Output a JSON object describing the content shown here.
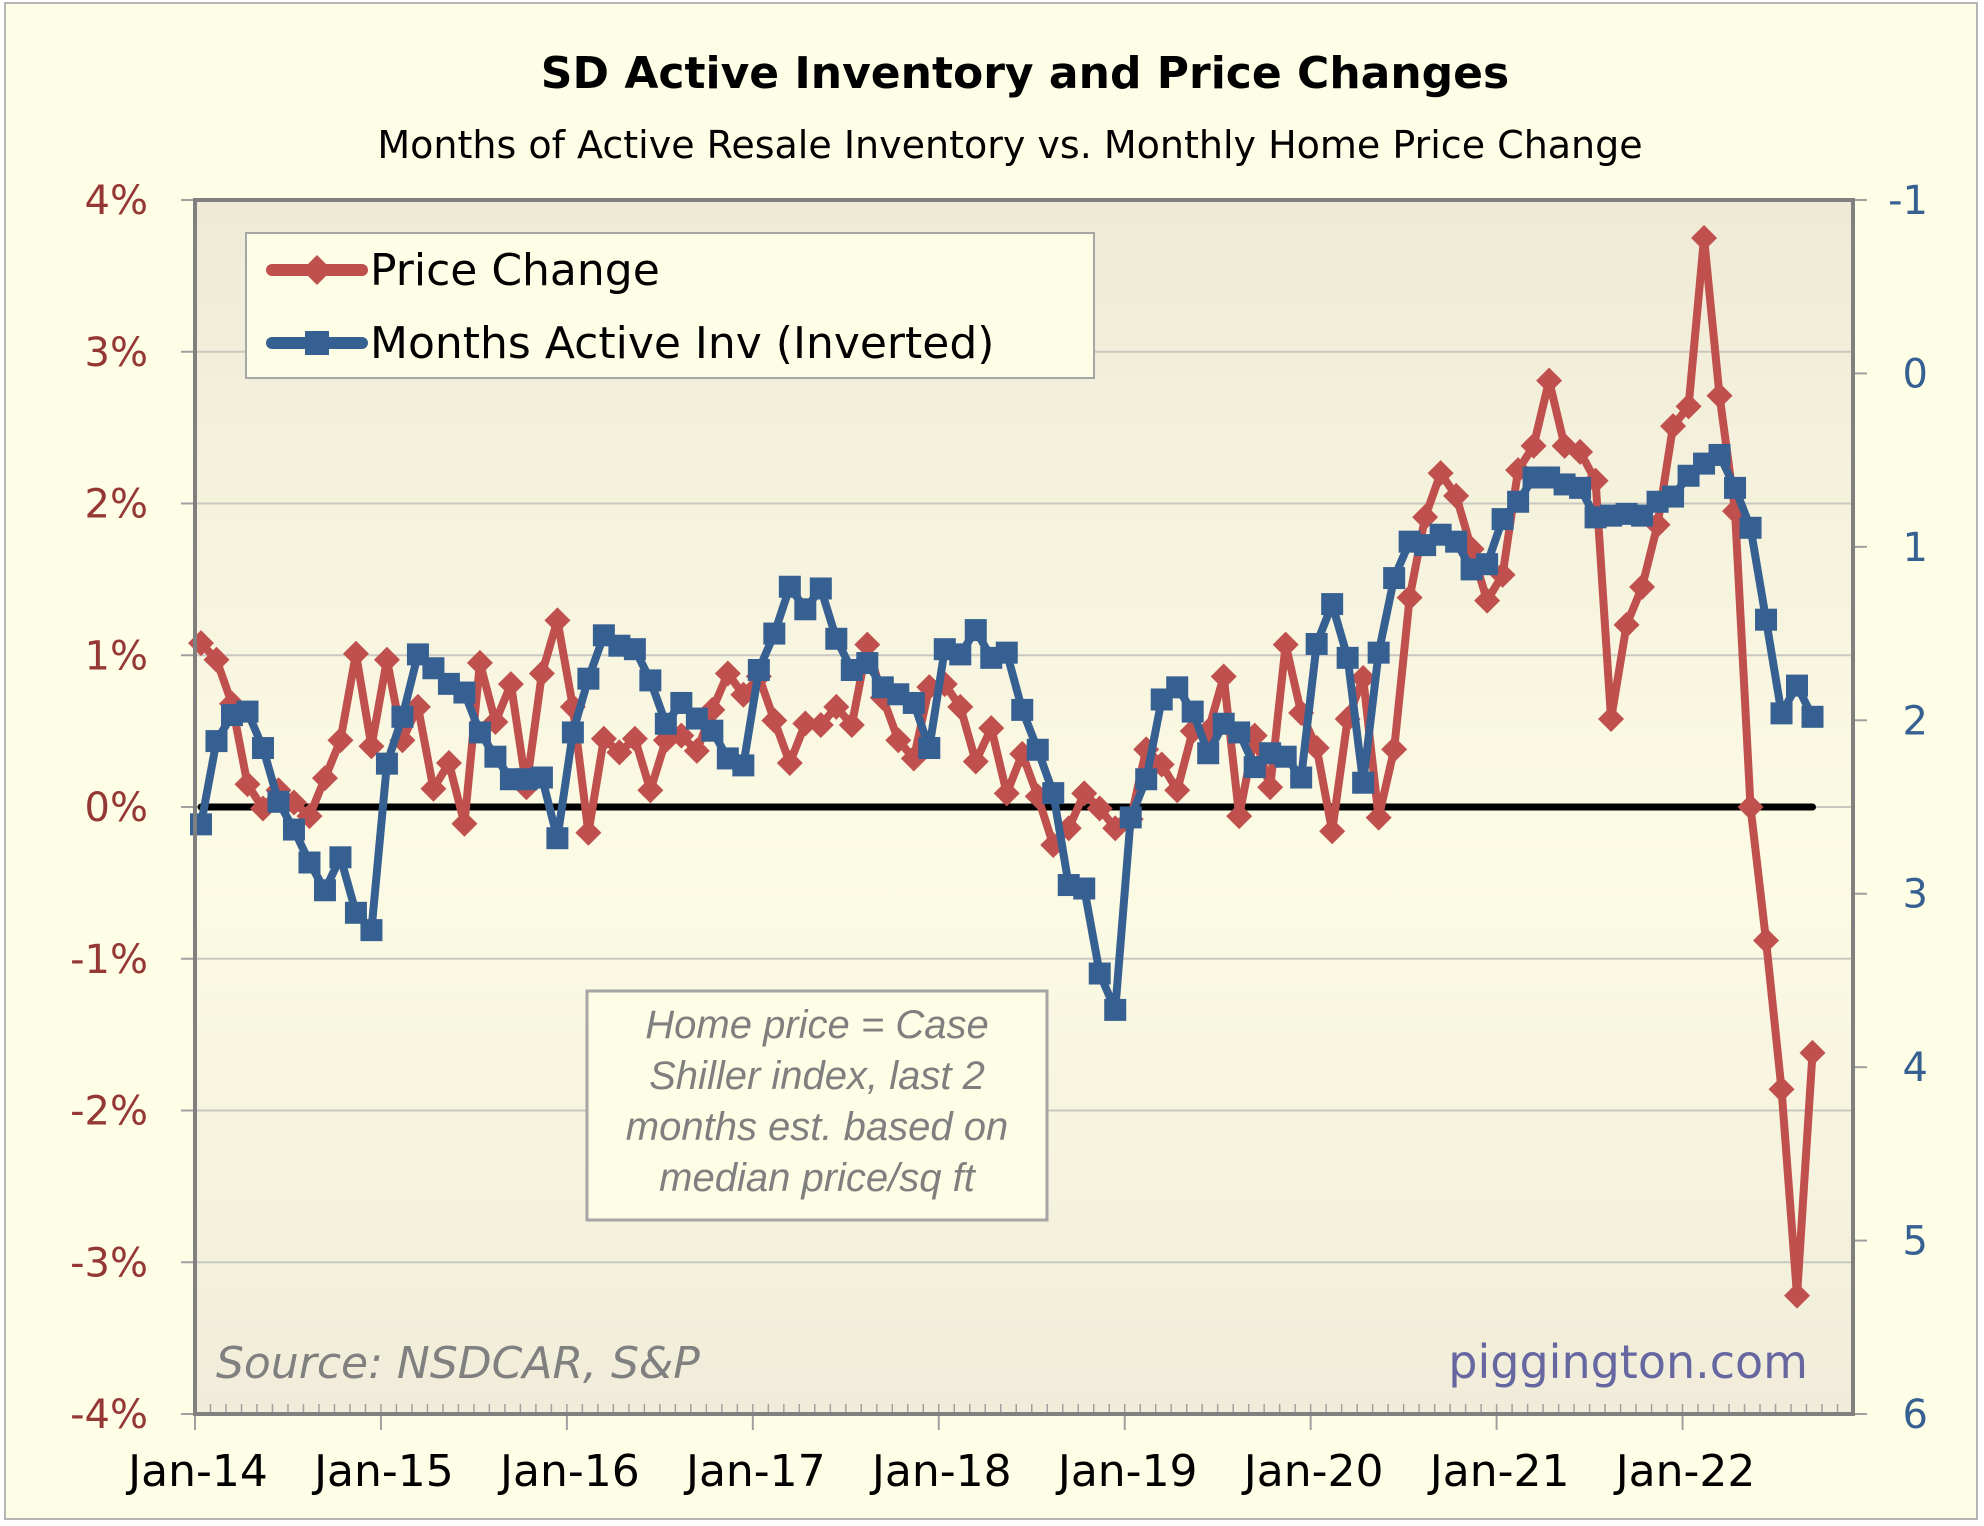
{
  "chart_data": {
    "type": "line",
    "title": "SD Active Inventory and Price Changes",
    "subtitle": "Months of Active Resale Inventory vs. Monthly Home Price Change",
    "xlabel": "",
    "ylabel_left": "",
    "ylabel_right": "",
    "x_start": "Jan-14",
    "x_tick_labels": [
      "Jan-14",
      "Jan-15",
      "Jan-16",
      "Jan-17",
      "Jan-18",
      "Jan-19",
      "Jan-20",
      "Jan-21",
      "Jan-22"
    ],
    "x_months_total": 107,
    "y_left": {
      "min": -4,
      "max": 4,
      "step": 1,
      "tick_labels": [
        "4%",
        "3%",
        "2%",
        "1%",
        "0%",
        "-1%",
        "-2%",
        "-3%",
        "-4%"
      ],
      "unit": "%"
    },
    "y_right": {
      "min": -1,
      "max": 6,
      "step": 1,
      "inverted": true,
      "tick_labels": [
        "-1",
        "0",
        "1",
        "2",
        "3",
        "4",
        "5",
        "6"
      ]
    },
    "grid": true,
    "zero_line": true,
    "legend_position": "top-left",
    "series": [
      {
        "name": "Price Change",
        "axis": "left",
        "color": "#C0504D",
        "marker": "diamond",
        "values": [
          1.08,
          0.97,
          0.68,
          0.15,
          -0.01,
          0.11,
          0.03,
          -0.06,
          0.19,
          0.44,
          1.01,
          0.4,
          0.97,
          0.44,
          0.66,
          0.12,
          0.29,
          -0.11,
          0.95,
          0.56,
          0.81,
          0.13,
          0.88,
          1.23,
          0.66,
          -0.17,
          0.45,
          0.36,
          0.45,
          0.11,
          0.44,
          0.47,
          0.37,
          0.64,
          0.88,
          0.74,
          0.86,
          0.57,
          0.29,
          0.55,
          0.54,
          0.66,
          0.54,
          1.07,
          0.72,
          0.44,
          0.32,
          0.79,
          0.81,
          0.66,
          0.3,
          0.52,
          0.09,
          0.35,
          0.07,
          -0.25,
          -0.14,
          0.09,
          -0.01,
          -0.14,
          -0.08,
          0.38,
          0.28,
          0.11,
          0.5,
          0.5,
          0.86,
          -0.06,
          0.47,
          0.13,
          1.07,
          0.62,
          0.39,
          -0.16,
          0.58,
          0.85,
          -0.07,
          0.38,
          1.38,
          1.91,
          2.2,
          2.05,
          1.7,
          1.36,
          1.53,
          2.22,
          2.38,
          2.81,
          2.38,
          2.34,
          2.15,
          0.58,
          1.2,
          1.45,
          1.86,
          2.51,
          2.64,
          3.75,
          2.71,
          1.95,
          0.0,
          -0.88,
          -1.86,
          -3.22,
          -1.62
        ]
      },
      {
        "name": "Months Active Inv (Inverted)",
        "axis": "right",
        "color": "#376092",
        "marker": "square",
        "values": [
          2.6,
          2.12,
          1.97,
          1.95,
          2.16,
          2.47,
          2.63,
          2.82,
          2.98,
          2.79,
          3.11,
          3.21,
          2.25,
          1.98,
          1.62,
          1.7,
          1.79,
          1.84,
          2.07,
          2.21,
          2.34,
          2.34,
          2.33,
          2.68,
          2.07,
          1.76,
          1.51,
          1.57,
          1.59,
          1.77,
          2.02,
          1.9,
          1.99,
          2.06,
          2.22,
          2.26,
          1.71,
          1.5,
          1.23,
          1.36,
          1.24,
          1.53,
          1.71,
          1.67,
          1.81,
          1.85,
          1.9,
          2.16,
          1.59,
          1.62,
          1.48,
          1.64,
          1.61,
          1.94,
          2.17,
          2.42,
          2.95,
          2.97,
          3.46,
          3.67,
          2.56,
          2.34,
          1.88,
          1.81,
          1.95,
          2.19,
          2.02,
          2.07,
          2.27,
          2.19,
          2.21,
          2.33,
          1.56,
          1.33,
          1.64,
          2.36,
          1.61,
          1.18,
          0.97,
          0.99,
          0.93,
          0.97,
          1.13,
          1.1,
          0.84,
          0.74,
          0.6,
          0.6,
          0.64,
          0.66,
          0.83,
          0.82,
          0.81,
          0.82,
          0.74,
          0.71,
          0.59,
          0.52,
          0.47,
          0.66,
          0.89,
          1.42,
          1.96,
          1.8,
          1.98
        ]
      }
    ],
    "annotations": {
      "note_lines": [
        "Home price = Case",
        "Shiller index, last 2",
        "months est. based on",
        "median price/sq ft"
      ],
      "source": "Source: NSDCAR, S&P",
      "site": "piggington.com"
    }
  },
  "colors": {
    "background": "#FEFEE6",
    "left_axis_text": "#953735",
    "right_axis_text": "#376092",
    "zero_line": "#000000"
  }
}
